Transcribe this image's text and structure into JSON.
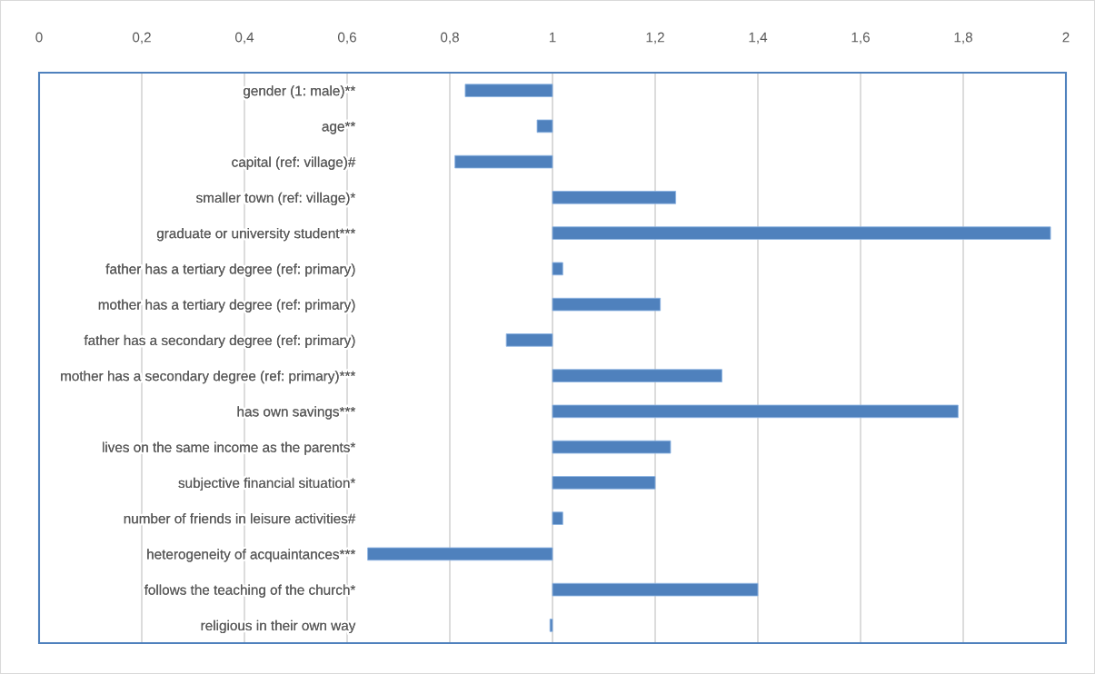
{
  "chart_data": {
    "type": "bar",
    "orientation": "horizontal",
    "categories": [
      "gender (1: male)**",
      "age**",
      "capital (ref: village)#",
      "smaller town (ref: village)*",
      "graduate or university student***",
      "father has a tertiary degree (ref: primary)",
      "mother has a tertiary degree (ref: primary)",
      "father has a secondary degree (ref: primary)",
      "mother has a secondary degree (ref: primary)***",
      "has own savings***",
      "lives on the same income as the parents*",
      "subjective financial situation*",
      "number of friends in leisure activities#",
      "heterogeneity of acquaintances***",
      "follows the teaching of the church*",
      "religious in their own way"
    ],
    "base": [
      1,
      1,
      1,
      1,
      1,
      1,
      1,
      1,
      1,
      1,
      1,
      1,
      1,
      1,
      1,
      1
    ],
    "values": [
      -0.17,
      -0.03,
      -0.19,
      0.24,
      0.97,
      0.02,
      0.21,
      -0.09,
      0.33,
      0.79,
      0.23,
      0.2,
      0.02,
      -0.36,
      0.4,
      -0.005
    ],
    "color": "#4f81bd",
    "xlim": [
      0,
      2
    ],
    "xticks": [
      0,
      {
        "value": 0.2,
        "label": "0,2"
      },
      {
        "value": 0.4,
        "label": "0,4"
      },
      {
        "value": 0.6,
        "label": "0,6"
      },
      {
        "value": 0.8,
        "label": "0,8"
      },
      1,
      {
        "value": 1.2,
        "label": "1,2"
      },
      {
        "value": 1.4,
        "label": "1,4"
      },
      {
        "value": 1.6,
        "label": "1,6"
      },
      {
        "value": 1.8,
        "label": "1,8"
      },
      2
    ],
    "grid": "x"
  }
}
